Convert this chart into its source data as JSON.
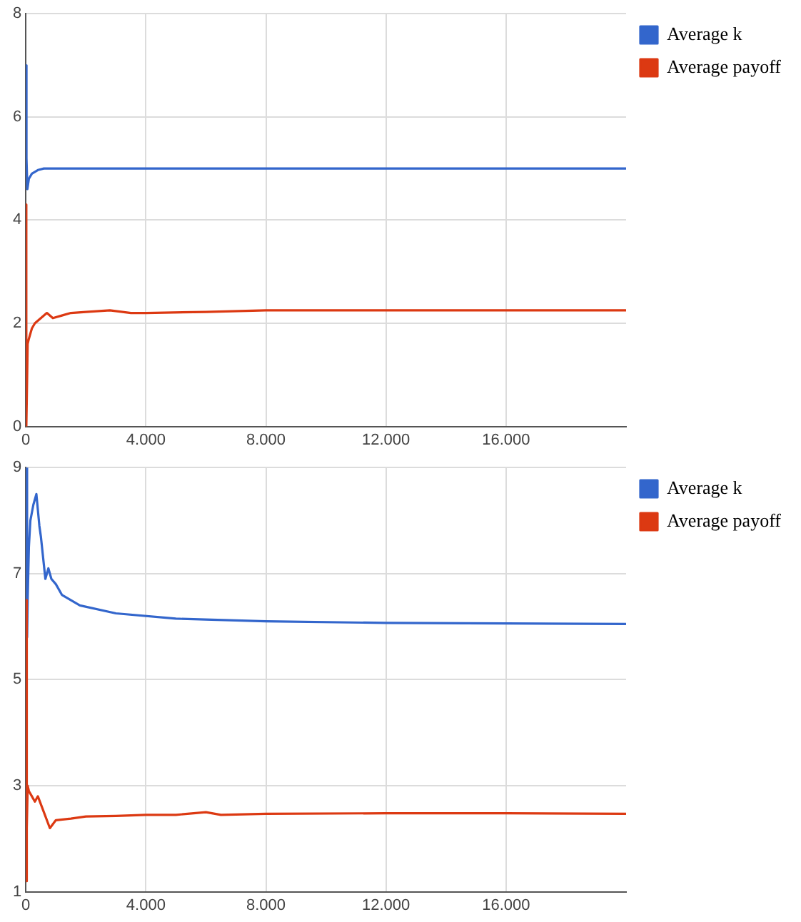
{
  "chart_data": [
    {
      "type": "line",
      "xlim": [
        0,
        20000
      ],
      "xticks": [
        0,
        {
          "value": 4000,
          "label": "4.000"
        },
        {
          "value": 8000,
          "label": "8.000"
        },
        {
          "value": 12000,
          "label": "12.000"
        },
        {
          "value": 16000,
          "label": "16.000"
        }
      ],
      "ylim": [
        0,
        8
      ],
      "yticks": [
        0,
        2,
        4,
        6,
        8
      ],
      "grid": true,
      "legend": "top right",
      "marker": "none",
      "line_style": "solid",
      "series": [
        {
          "name": "Average k",
          "color": "#3366cc",
          "x": [
            0,
            20,
            50,
            100,
            200,
            400,
            600,
            1000,
            2000,
            4000,
            8000,
            12000,
            16000,
            20000
          ],
          "values": [
            7,
            5.2,
            4.6,
            4.8,
            4.9,
            4.97,
            5.0,
            5.0,
            5.0,
            5.0,
            5.0,
            5.0,
            5.0,
            5.0
          ]
        },
        {
          "name": "Average payoff",
          "color": "#dc3912",
          "x": [
            0,
            15,
            60,
            100,
            200,
            300,
            500,
            700,
            900,
            1200,
            1500,
            2000,
            2800,
            3500,
            4000,
            6000,
            8000,
            12000,
            16000,
            20000
          ],
          "values": [
            4.3,
            0,
            1.6,
            1.7,
            1.9,
            2.0,
            2.1,
            2.2,
            2.1,
            2.15,
            2.2,
            2.22,
            2.25,
            2.2,
            2.2,
            2.22,
            2.25,
            2.25,
            2.25,
            2.25
          ]
        }
      ]
    },
    {
      "type": "line",
      "xlim": [
        0,
        20000
      ],
      "xticks": [
        0,
        {
          "value": 4000,
          "label": "4.000"
        },
        {
          "value": 8000,
          "label": "8.000"
        },
        {
          "value": 12000,
          "label": "12.000"
        },
        {
          "value": 16000,
          "label": "16.000"
        }
      ],
      "ylim": [
        1,
        9
      ],
      "yticks": [
        1,
        3,
        5,
        7,
        9
      ],
      "grid": true,
      "legend": "top right",
      "marker": "none",
      "line_style": "solid",
      "series": [
        {
          "name": "Average k",
          "color": "#3366cc",
          "x": [
            0,
            40,
            60,
            100,
            150,
            250,
            350,
            450,
            500,
            650,
            750,
            850,
            1000,
            1200,
            1800,
            3000,
            5000,
            8000,
            12000,
            16000,
            20000
          ],
          "values": [
            9,
            5.8,
            6.5,
            7.5,
            8.0,
            8.3,
            8.5,
            7.9,
            7.7,
            6.9,
            7.1,
            6.9,
            6.8,
            6.6,
            6.4,
            6.25,
            6.15,
            6.1,
            6.07,
            6.06,
            6.05
          ]
        },
        {
          "name": "Average payoff",
          "color": "#dc3912",
          "x": [
            0,
            20,
            40,
            60,
            100,
            200,
            300,
            400,
            600,
            800,
            1000,
            1500,
            2000,
            3000,
            4000,
            5000,
            6000,
            6500,
            8000,
            12000,
            16000,
            20000
          ],
          "values": [
            6.5,
            1.2,
            2.2,
            3.0,
            2.9,
            2.8,
            2.7,
            2.8,
            2.5,
            2.2,
            2.35,
            2.38,
            2.42,
            2.43,
            2.45,
            2.45,
            2.5,
            2.45,
            2.47,
            2.48,
            2.48,
            2.47
          ]
        }
      ]
    }
  ]
}
